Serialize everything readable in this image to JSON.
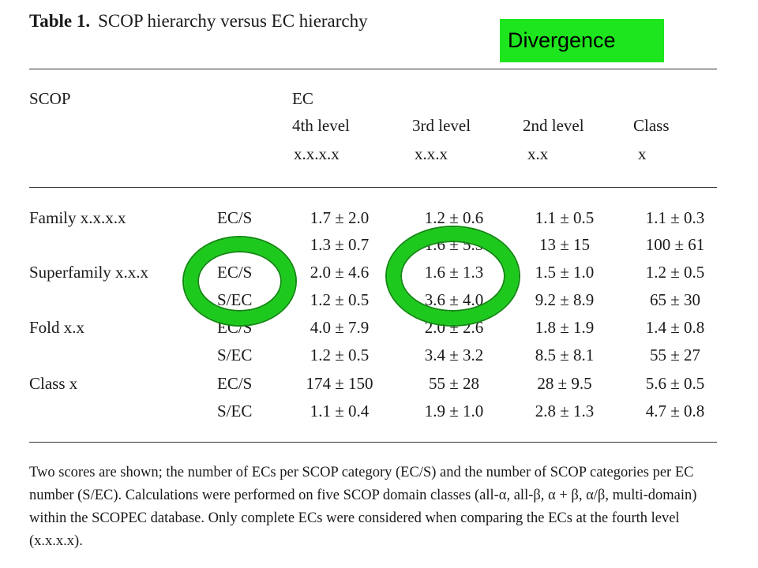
{
  "table": {
    "label": "Table 1.",
    "caption": "SCOP hierarchy versus EC hierarchy",
    "header": {
      "scop": "SCOP",
      "ec": "EC",
      "levels": [
        "4th level",
        "3rd level",
        "2nd level",
        "Class"
      ],
      "patterns": [
        "x.x.x.x",
        "x.x.x",
        "x.x",
        "x"
      ]
    },
    "rows": [
      {
        "category": "Family x.x.x.x",
        "score": "EC/S",
        "values": [
          "1.7 ± 2.0",
          "1.2 ± 0.6",
          "1.1 ± 0.5",
          "1.1 ± 0.3"
        ]
      },
      {
        "category": "",
        "score": "S/EC",
        "values": [
          "1.3 ± 0.7",
          "1.6 ± 5.3",
          "13 ± 15",
          "100 ± 61"
        ]
      },
      {
        "category": "Superfamily x.x.x",
        "score": "EC/S",
        "values": [
          "2.0 ± 4.6",
          "1.6 ± 1.3",
          "1.5 ± 1.0",
          "1.2 ± 0.5"
        ]
      },
      {
        "category": "",
        "score": "S/EC",
        "values": [
          "1.2 ± 0.5",
          "3.6 ± 4.0",
          "9.2 ± 8.9",
          "65 ± 30"
        ]
      },
      {
        "category": "Fold x.x",
        "score": "EC/S",
        "values": [
          "4.0 ± 7.9",
          "2.0 ± 2.6",
          "1.8 ± 1.9",
          "1.4 ± 0.8"
        ]
      },
      {
        "category": "",
        "score": "S/EC",
        "values": [
          "1.2 ± 0.5",
          "3.4 ± 3.2",
          "8.5 ± 8.1",
          "55 ± 27"
        ]
      },
      {
        "category": "Class x",
        "score": "EC/S",
        "values": [
          "174 ± 150",
          "55 ± 28",
          "28 ± 9.5",
          "5.6 ± 0.5"
        ]
      },
      {
        "category": "",
        "score": "S/EC",
        "values": [
          "1.1 ± 0.4",
          "1.9 ± 1.0",
          "2.8 ± 1.3",
          "4.7 ± 0.8"
        ]
      }
    ],
    "footnote": "Two scores are shown; the number of ECs per SCOP category (EC/S) and the number of SCOP categories per EC number (S/EC). Calculations were performed on five SCOP domain classes (all-α, all-β, α + β, α/β, multi-domain) within the SCOPEC database. Only complete ECs were considered when comparing the ECs at the fourth level (x.x.x.x)."
  },
  "annotation": {
    "label": "Divergence",
    "color": "#1ee61e",
    "ring_color": "#1dc91d"
  }
}
